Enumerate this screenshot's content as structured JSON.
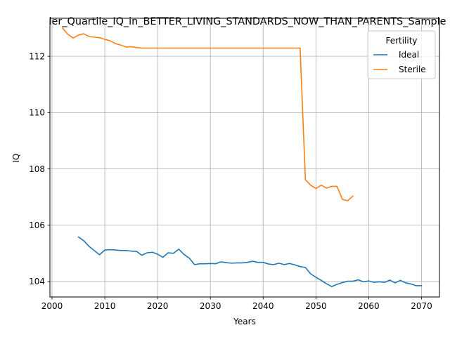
{
  "chart_data": {
    "type": "line",
    "title": "ler_Quartile_IQ_in_BETTER_LIVING_STANDARDS_NOW_THAN_PARENTS_Sample",
    "xlabel": "Years",
    "ylabel": "IQ",
    "xlim": [
      1999.6,
      2073.4
    ],
    "ylim": [
      103.45,
      113.35
    ],
    "xticks": [
      2000,
      2010,
      2020,
      2030,
      2040,
      2050,
      2060,
      2070
    ],
    "yticks": [
      104,
      106,
      108,
      110,
      112
    ],
    "grid": true,
    "legend": {
      "title": "Fertility",
      "placement": "top-right"
    },
    "series": [
      {
        "name": "Ideal",
        "color": "#1f77b4",
        "points": [
          [
            2005,
            105.58
          ],
          [
            2006,
            105.45
          ],
          [
            2007,
            105.25
          ],
          [
            2008,
            105.1
          ],
          [
            2009,
            104.95
          ],
          [
            2010,
            105.12
          ],
          [
            2011,
            105.13
          ],
          [
            2012,
            105.12
          ],
          [
            2013,
            105.1
          ],
          [
            2014,
            105.1
          ],
          [
            2015,
            105.08
          ],
          [
            2016,
            105.07
          ],
          [
            2017,
            104.93
          ],
          [
            2018,
            105.02
          ],
          [
            2019,
            105.04
          ],
          [
            2020,
            104.97
          ],
          [
            2021,
            104.86
          ],
          [
            2022,
            105.02
          ],
          [
            2023,
            105.0
          ],
          [
            2024,
            105.15
          ],
          [
            2025,
            104.96
          ],
          [
            2026,
            104.83
          ],
          [
            2027,
            104.6
          ],
          [
            2028,
            104.63
          ],
          [
            2029,
            104.63
          ],
          [
            2030,
            104.64
          ],
          [
            2031,
            104.63
          ],
          [
            2032,
            104.7
          ],
          [
            2033,
            104.67
          ],
          [
            2034,
            104.65
          ],
          [
            2035,
            104.66
          ],
          [
            2036,
            104.66
          ],
          [
            2037,
            104.68
          ],
          [
            2038,
            104.72
          ],
          [
            2039,
            104.68
          ],
          [
            2040,
            104.68
          ],
          [
            2041,
            104.62
          ],
          [
            2042,
            104.6
          ],
          [
            2043,
            104.65
          ],
          [
            2044,
            104.6
          ],
          [
            2045,
            104.64
          ],
          [
            2046,
            104.59
          ],
          [
            2047,
            104.53
          ],
          [
            2048,
            104.5
          ],
          [
            2049,
            104.27
          ],
          [
            2050,
            104.15
          ],
          [
            2051,
            104.04
          ],
          [
            2052,
            103.92
          ],
          [
            2053,
            103.82
          ],
          [
            2054,
            103.9
          ],
          [
            2055,
            103.96
          ],
          [
            2056,
            104.01
          ],
          [
            2057,
            104.01
          ],
          [
            2058,
            104.06
          ],
          [
            2059,
            103.99
          ],
          [
            2060,
            104.02
          ],
          [
            2061,
            103.97
          ],
          [
            2062,
            103.99
          ],
          [
            2063,
            103.97
          ],
          [
            2064,
            104.05
          ],
          [
            2065,
            103.95
          ],
          [
            2066,
            104.04
          ],
          [
            2067,
            103.95
          ],
          [
            2068,
            103.91
          ],
          [
            2069,
            103.85
          ],
          [
            2070,
            103.85
          ]
        ]
      },
      {
        "name": "Sterile",
        "color": "#ff7f0e",
        "points": [
          [
            2002,
            113.0
          ],
          [
            2003,
            112.78
          ],
          [
            2004,
            112.65
          ],
          [
            2005,
            112.75
          ],
          [
            2006,
            112.8
          ],
          [
            2007,
            112.7
          ],
          [
            2008,
            112.68
          ],
          [
            2009,
            112.66
          ],
          [
            2010,
            112.6
          ],
          [
            2011,
            112.55
          ],
          [
            2012,
            112.45
          ],
          [
            2013,
            112.4
          ],
          [
            2014,
            112.33
          ],
          [
            2015,
            112.34
          ],
          [
            2016,
            112.31
          ],
          [
            2017,
            112.29
          ],
          [
            2018,
            112.29
          ],
          [
            2019,
            112.29
          ],
          [
            2020,
            112.29
          ],
          [
            2021,
            112.29
          ],
          [
            2022,
            112.29
          ],
          [
            2023,
            112.29
          ],
          [
            2024,
            112.29
          ],
          [
            2025,
            112.29
          ],
          [
            2026,
            112.29
          ],
          [
            2027,
            112.29
          ],
          [
            2028,
            112.29
          ],
          [
            2029,
            112.29
          ],
          [
            2030,
            112.29
          ],
          [
            2031,
            112.29
          ],
          [
            2032,
            112.29
          ],
          [
            2033,
            112.29
          ],
          [
            2034,
            112.29
          ],
          [
            2035,
            112.29
          ],
          [
            2036,
            112.29
          ],
          [
            2037,
            112.29
          ],
          [
            2038,
            112.29
          ],
          [
            2039,
            112.29
          ],
          [
            2040,
            112.29
          ],
          [
            2041,
            112.29
          ],
          [
            2042,
            112.29
          ],
          [
            2043,
            112.29
          ],
          [
            2044,
            112.29
          ],
          [
            2045,
            112.29
          ],
          [
            2046,
            112.29
          ],
          [
            2047,
            112.29
          ],
          [
            2048,
            107.62
          ],
          [
            2049,
            107.42
          ],
          [
            2050,
            107.3
          ],
          [
            2051,
            107.42
          ],
          [
            2052,
            107.32
          ],
          [
            2053,
            107.38
          ],
          [
            2054,
            107.38
          ],
          [
            2055,
            106.92
          ],
          [
            2056,
            106.87
          ],
          [
            2057,
            107.03
          ]
        ]
      }
    ]
  }
}
